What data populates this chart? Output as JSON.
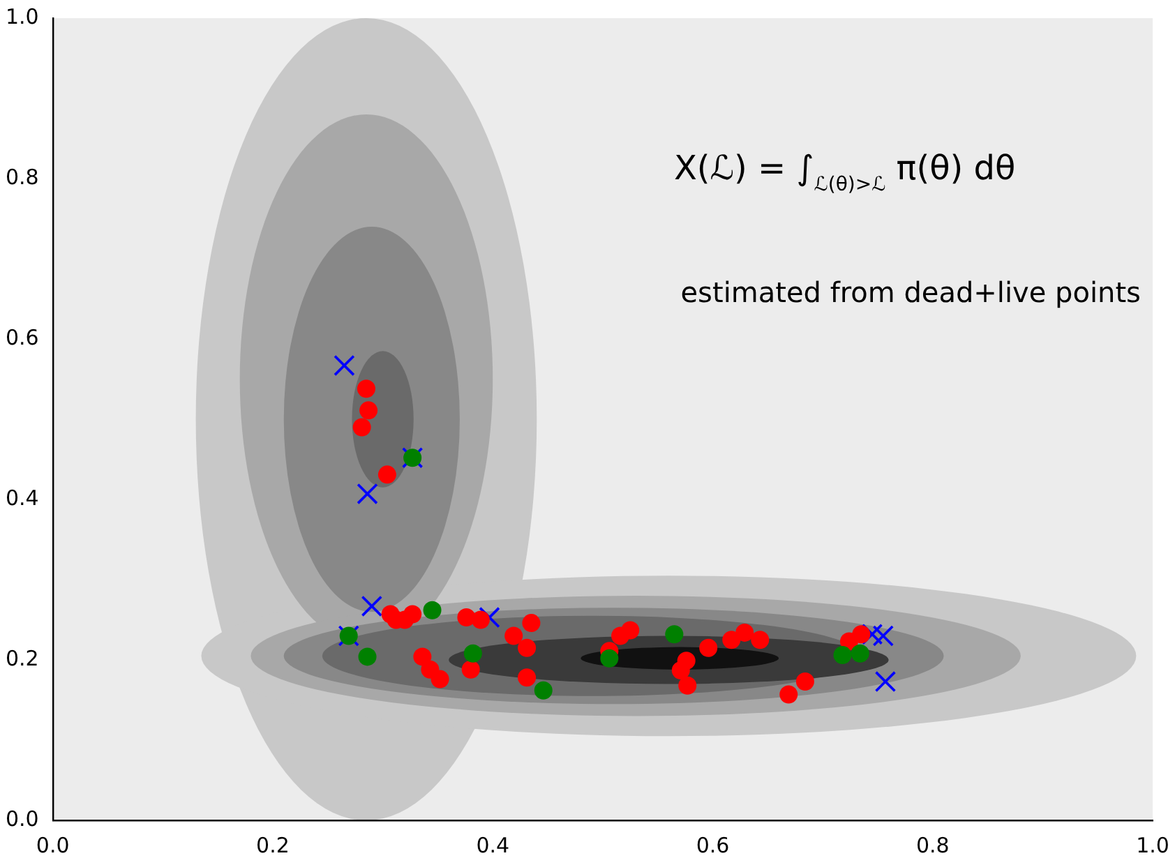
{
  "chart_data": {
    "type": "scatter",
    "annotations": [
      "X(ℒ) = ∫$_{ℒ(θ)>ℒ}$ π(θ) dθ",
      "estimated from dead+live points"
    ],
    "xlim": [
      0,
      1
    ],
    "ylim": [
      0,
      1
    ],
    "xticks": [
      {
        "value": 0,
        "label": "0.0"
      },
      {
        "value": 0.2,
        "label": "0.2"
      },
      {
        "value": 0.4,
        "label": "0.4"
      },
      {
        "value": 0.6,
        "label": "0.6"
      },
      {
        "value": 0.8,
        "label": "0.8"
      },
      {
        "value": 1,
        "label": "1.0"
      }
    ],
    "yticks": [
      {
        "value": 0,
        "label": "0.0"
      },
      {
        "value": 0.2,
        "label": "0.2"
      },
      {
        "value": 0.4,
        "label": "0.4"
      },
      {
        "value": 0.6,
        "label": "0.6"
      },
      {
        "value": 0.8,
        "label": "0.8"
      },
      {
        "value": 1,
        "label": "1.0"
      }
    ],
    "grid": false,
    "legend": false,
    "series": [
      {
        "color": "#0000ff",
        "marker": "cross",
        "x": [
          0.265,
          0.286,
          0.327,
          0.29,
          0.397,
          0.269,
          0.745,
          0.755,
          0.757
        ],
        "values": [
          0.567,
          0.407,
          0.452,
          0.267,
          0.253,
          0.23,
          0.232,
          0.23,
          0.173
        ]
      },
      {
        "color": "#ff0000",
        "marker": "circle",
        "x": [
          0.285,
          0.287,
          0.281,
          0.304,
          0.307,
          0.312,
          0.32,
          0.327,
          0.376,
          0.389,
          0.336,
          0.343,
          0.352,
          0.38,
          0.419,
          0.435,
          0.431,
          0.431,
          0.516,
          0.525,
          0.506,
          0.617,
          0.629,
          0.643,
          0.596,
          0.576,
          0.571,
          0.577,
          0.684,
          0.669,
          0.724,
          0.735
        ],
        "values": [
          0.538,
          0.511,
          0.49,
          0.431,
          0.257,
          0.25,
          0.25,
          0.257,
          0.253,
          0.25,
          0.204,
          0.188,
          0.176,
          0.188,
          0.23,
          0.246,
          0.215,
          0.178,
          0.23,
          0.237,
          0.211,
          0.225,
          0.234,
          0.225,
          0.215,
          0.199,
          0.187,
          0.168,
          0.173,
          0.157,
          0.223,
          0.232
        ]
      },
      {
        "color": "#008000",
        "marker": "circle",
        "x": [
          0.345,
          0.269,
          0.286,
          0.382,
          0.446,
          0.506,
          0.565,
          0.718,
          0.734,
          0.327
        ],
        "values": [
          0.262,
          0.23,
          0.204,
          0.208,
          0.162,
          0.202,
          0.232,
          0.206,
          0.208,
          0.452
        ]
      }
    ]
  }
}
